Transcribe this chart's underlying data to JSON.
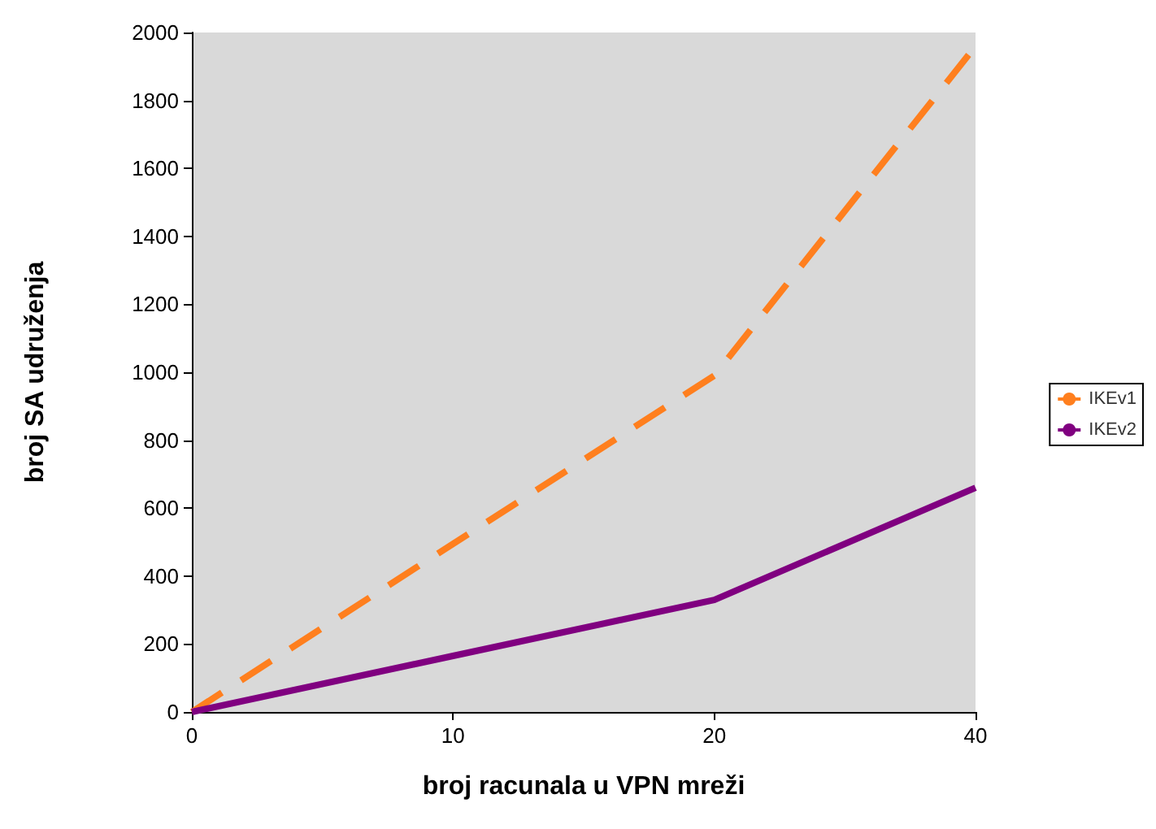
{
  "chart_data": {
    "type": "line",
    "xlabel": "broj racunala u VPN mreži",
    "ylabel": "broj SA udruženja",
    "categories": [
      "0",
      "10",
      "20",
      "40"
    ],
    "series": [
      {
        "name": "IKEv1",
        "color": "#ff7f1e",
        "line_style": "dashed",
        "values": [
          0,
          495,
          990,
          1960
        ]
      },
      {
        "name": "IKEv2",
        "color": "#800080",
        "line_style": "solid",
        "values": [
          0,
          165,
          330,
          660
        ]
      }
    ],
    "ylim": [
      0,
      2000
    ],
    "yticks": [
      0,
      200,
      400,
      600,
      800,
      1000,
      1200,
      1400,
      1600,
      1800,
      2000
    ],
    "grid": false,
    "legend": "right",
    "marker": "none"
  }
}
